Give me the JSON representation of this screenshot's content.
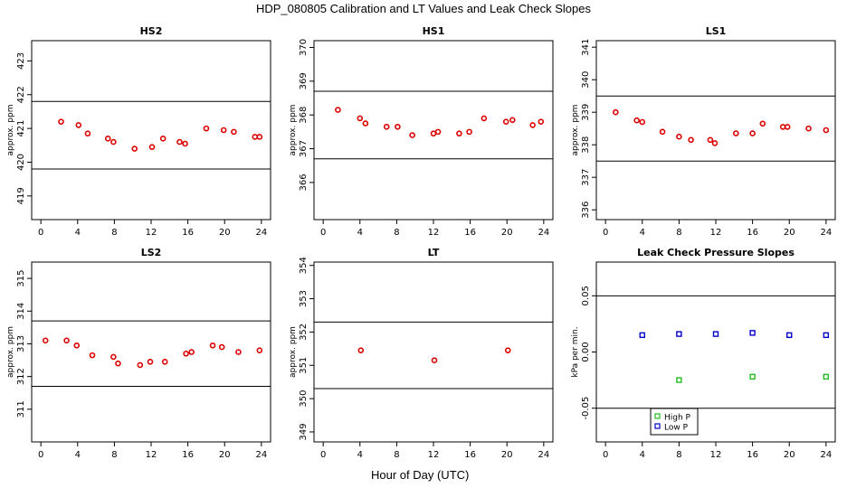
{
  "title": "HDP_080805  Calibration and LT Values and Leak Check Slopes",
  "xlabel": "Hour of Day (UTC)",
  "chart_data": [
    {
      "type": "scatter",
      "title": "HS2",
      "ylabel": "approx. ppm",
      "xlim": [
        -1,
        25
      ],
      "ylim": [
        418.3,
        423.6
      ],
      "xticks": [
        0,
        4,
        8,
        12,
        16,
        20,
        24
      ],
      "yticks": [
        419,
        420,
        421,
        422,
        423
      ],
      "hlines": [
        421.8,
        419.8
      ],
      "color": "#dd0000",
      "x": [
        2.2,
        4.1,
        5.1,
        7.3,
        7.9,
        10.2,
        12.1,
        13.3,
        15.1,
        15.7,
        18.0,
        19.9,
        21.0,
        23.3,
        23.8
      ],
      "y": [
        421.2,
        421.1,
        420.85,
        420.7,
        420.6,
        420.4,
        420.45,
        420.7,
        420.6,
        420.55,
        421.0,
        420.95,
        420.9,
        420.75,
        420.75
      ]
    },
    {
      "type": "scatter",
      "title": "HS1",
      "ylabel": "approx. ppm",
      "xlim": [
        -1,
        25
      ],
      "ylim": [
        364.9,
        370.2
      ],
      "xticks": [
        0,
        4,
        8,
        12,
        16,
        20,
        24
      ],
      "yticks": [
        366,
        367,
        368,
        369,
        370
      ],
      "hlines": [
        368.7,
        366.7
      ],
      "color": "#dd0000",
      "x": [
        1.6,
        4.0,
        4.6,
        6.9,
        8.1,
        9.7,
        12.0,
        12.5,
        14.8,
        15.9,
        17.5,
        19.9,
        20.6,
        22.8,
        23.7
      ],
      "y": [
        368.15,
        367.9,
        367.75,
        367.65,
        367.65,
        367.4,
        367.45,
        367.5,
        367.45,
        367.5,
        367.9,
        367.8,
        367.85,
        367.7,
        367.8
      ]
    },
    {
      "type": "scatter",
      "title": "LS1",
      "ylabel": "approx. ppm",
      "xlim": [
        -1,
        25
      ],
      "ylim": [
        335.7,
        341.2
      ],
      "xticks": [
        0,
        4,
        8,
        12,
        16,
        20,
        24
      ],
      "yticks": [
        336,
        337,
        338,
        339,
        340,
        341
      ],
      "hlines": [
        339.5,
        337.5
      ],
      "color": "#dd0000",
      "x": [
        1.1,
        3.4,
        4.0,
        6.2,
        8.0,
        9.3,
        11.4,
        11.9,
        14.2,
        16.0,
        17.1,
        19.3,
        19.8,
        22.1,
        24.0
      ],
      "y": [
        339.0,
        338.75,
        338.7,
        338.4,
        338.25,
        338.15,
        338.15,
        338.05,
        338.35,
        338.35,
        338.65,
        338.55,
        338.55,
        338.5,
        338.45
      ]
    },
    {
      "type": "scatter",
      "title": "LS2",
      "ylabel": "approx. ppm",
      "xlim": [
        -1,
        25
      ],
      "ylim": [
        310.0,
        315.5
      ],
      "xticks": [
        0,
        4,
        8,
        12,
        16,
        20,
        24
      ],
      "yticks": [
        311,
        312,
        313,
        314,
        315
      ],
      "hlines": [
        313.7,
        311.7
      ],
      "color": "#dd0000",
      "x": [
        0.5,
        2.8,
        3.9,
        5.6,
        7.9,
        8.4,
        10.8,
        11.9,
        13.5,
        15.8,
        16.4,
        18.7,
        19.7,
        21.5,
        23.8
      ],
      "y": [
        313.1,
        313.1,
        312.95,
        312.65,
        312.6,
        312.4,
        312.35,
        312.45,
        312.45,
        312.7,
        312.75,
        312.95,
        312.9,
        312.75,
        312.8
      ]
    },
    {
      "type": "scatter",
      "title": "LT",
      "ylabel": "approx. ppm",
      "xlim": [
        -1,
        25
      ],
      "ylim": [
        348.7,
        354.1
      ],
      "xticks": [
        0,
        4,
        8,
        12,
        16,
        20,
        24
      ],
      "yticks": [
        349,
        350,
        351,
        352,
        353,
        354
      ],
      "hlines": [
        352.3,
        350.3
      ],
      "color": "#dd0000",
      "x": [
        4.1,
        12.1,
        20.1
      ],
      "y": [
        351.45,
        351.15,
        351.45
      ]
    },
    {
      "type": "scatter",
      "title": "Leak Check Pressure Slopes",
      "ylabel": "kPa per min.",
      "xlim": [
        -1,
        25
      ],
      "ylim": [
        -0.08,
        0.08
      ],
      "xticks": [
        0,
        4,
        8,
        12,
        16,
        20,
        24
      ],
      "yticks": [
        -0.05,
        0.0,
        0.05
      ],
      "ytick_labels": [
        "-0.05",
        "0.00",
        "0.05"
      ],
      "hlines": [
        0.05,
        -0.05
      ],
      "series": [
        {
          "name": "High P",
          "color": "#22bb22",
          "x": [
            8.0,
            16.0,
            24.0
          ],
          "y": [
            -0.025,
            -0.022,
            -0.022
          ]
        },
        {
          "name": "Low P",
          "color": "#0000cc",
          "x": [
            4.0,
            8.0,
            12.0,
            16.0,
            20.0,
            24.0
          ],
          "y": [
            0.015,
            0.016,
            0.016,
            0.017,
            0.015,
            0.015
          ]
        }
      ]
    }
  ]
}
